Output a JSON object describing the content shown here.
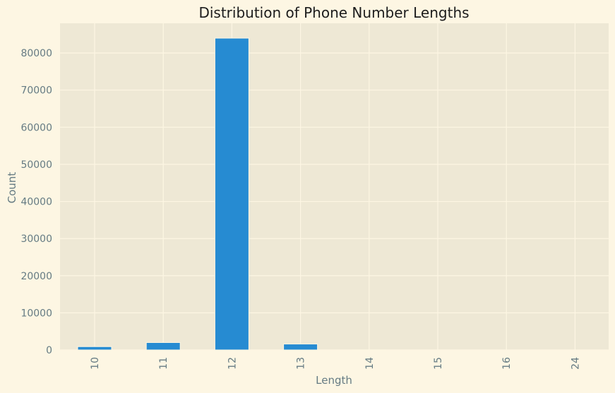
{
  "chart_data": {
    "type": "bar",
    "title": "Distribution of Phone Number Lengths",
    "xlabel": "Length",
    "ylabel": "Count",
    "categories": [
      "10",
      "11",
      "12",
      "13",
      "14",
      "15",
      "16",
      "24"
    ],
    "values": [
      900,
      2000,
      84000,
      1600,
      5,
      2,
      1,
      1
    ],
    "ylim": [
      0,
      88000
    ],
    "yticks": [
      0,
      10000,
      20000,
      30000,
      40000,
      50000,
      60000,
      70000,
      80000
    ],
    "ytick_labels": [
      "0",
      "10000",
      "20000",
      "30000",
      "40000",
      "50000",
      "60000",
      "70000",
      "80000"
    ],
    "grid": true,
    "x_tick_rotation": "vertical",
    "colors": {
      "bar": "#268bd2",
      "plot_background": "#eee8d5",
      "figure_background": "#fdf6e3",
      "grid": "#fdf6e3",
      "tick_text": "#657b83",
      "title_text": "#1c1c1c"
    }
  }
}
